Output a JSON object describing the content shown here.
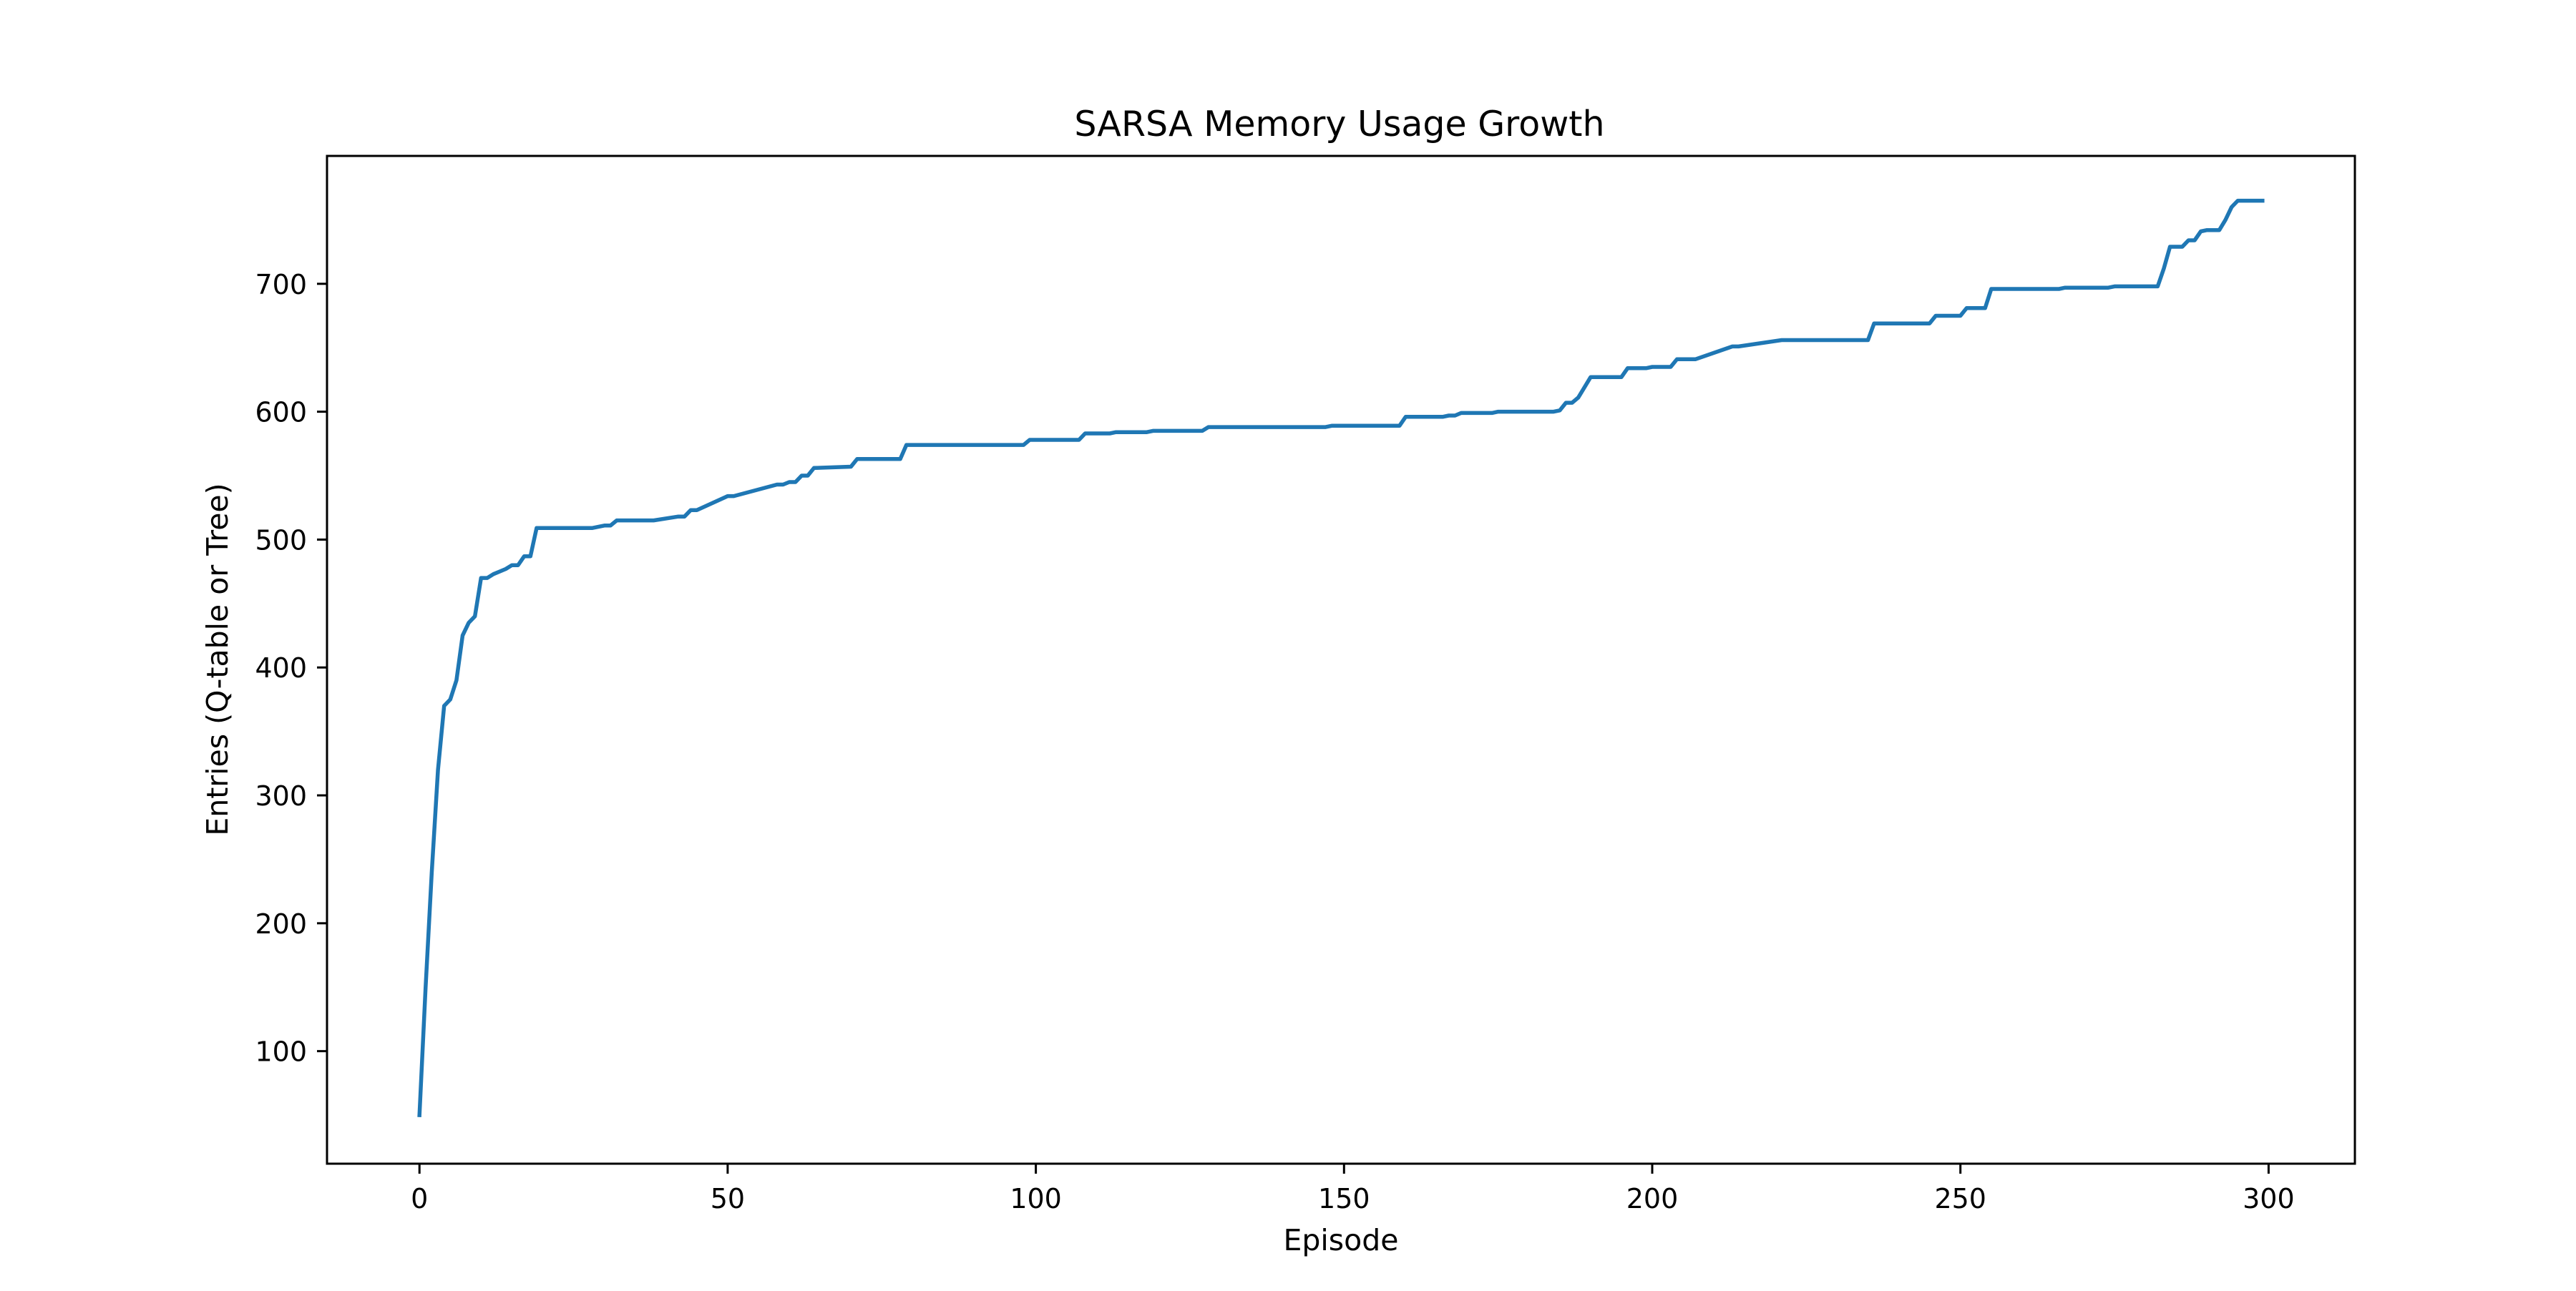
{
  "chart_data": {
    "type": "line",
    "title": "SARSA Memory Usage Growth",
    "xlabel": "Episode",
    "ylabel": "Entries (Q-table or Tree)",
    "xlim": [
      -15,
      314
    ],
    "ylim": [
      12,
      800
    ],
    "xticks": [
      0,
      50,
      100,
      150,
      200,
      250,
      300
    ],
    "yticks": [
      100,
      200,
      300,
      400,
      500,
      600,
      700
    ],
    "grid": false,
    "legend": "none",
    "line_color": "#1f77b4",
    "series": [
      {
        "x": [
          0,
          1,
          2,
          3,
          4,
          5,
          6,
          7,
          8,
          9,
          10,
          11,
          12,
          13,
          14,
          15,
          16,
          17,
          18,
          19,
          20,
          21,
          22,
          25,
          28,
          30,
          31,
          32,
          37,
          38,
          42,
          43,
          44,
          45,
          50,
          51,
          58,
          59,
          60,
          61,
          62,
          63,
          64,
          70,
          71,
          78,
          79,
          80,
          98,
          99,
          107,
          108,
          112,
          113,
          118,
          119,
          127,
          128,
          147,
          148,
          159,
          160,
          166,
          167,
          168,
          169,
          174,
          175,
          184,
          185,
          186,
          187,
          188,
          189,
          190,
          195,
          196,
          199,
          200,
          203,
          204,
          206,
          207,
          213,
          214,
          221,
          222,
          235,
          236,
          245,
          246,
          250,
          251,
          254,
          255,
          266,
          267,
          274,
          275,
          282,
          283,
          284,
          286,
          287,
          288,
          289,
          290,
          292,
          293,
          294,
          295,
          296,
          299
        ],
        "y": [
          50,
          150,
          240,
          320,
          370,
          375,
          390,
          425,
          435,
          440,
          470,
          470,
          473,
          475,
          477,
          480,
          480,
          487,
          487,
          509,
          509,
          509,
          509,
          509,
          509,
          511,
          511,
          515,
          515,
          515,
          518,
          518,
          523,
          523,
          534,
          534,
          543,
          543,
          545,
          545,
          550,
          550,
          556,
          557,
          563,
          563,
          574,
          574,
          574,
          578,
          578,
          583,
          583,
          584,
          584,
          585,
          585,
          588,
          588,
          589,
          589,
          596,
          596,
          597,
          597,
          599,
          599,
          600,
          600,
          601,
          607,
          607,
          611,
          619,
          627,
          627,
          634,
          634,
          635,
          635,
          641,
          641,
          641,
          651,
          651,
          656,
          656,
          656,
          669,
          669,
          675,
          675,
          681,
          681,
          696,
          696,
          697,
          697,
          698,
          698,
          712,
          729,
          729,
          734,
          734,
          741,
          742,
          742,
          750,
          760,
          765,
          765,
          765
        ]
      }
    ]
  }
}
